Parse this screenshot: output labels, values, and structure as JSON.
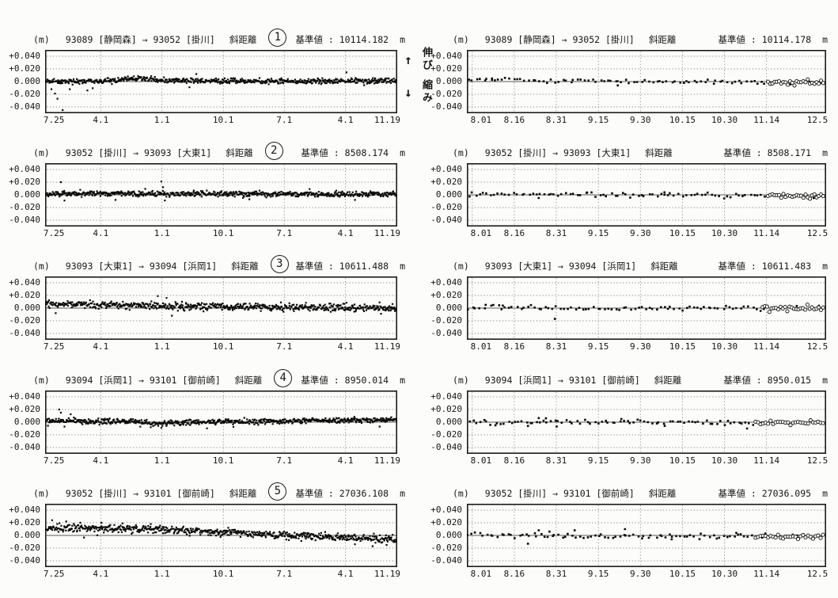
{
  "page": {
    "y_unit_label": "(m)",
    "reference_label": "基準値 :",
    "meter_unit": "m"
  },
  "annotation": {
    "up_arrow": "↑",
    "extend_label": "伸び",
    "down_arrow": "↓",
    "shrink_label": "縮み"
  },
  "axes": {
    "ylim": [
      -0.05,
      0.05
    ],
    "y_ticks": [
      {
        "label": "+0.040",
        "v": 0.04
      },
      {
        "label": "+0.020",
        "v": 0.02
      },
      {
        "label": "0.000",
        "v": 0.0
      },
      {
        "label": "-0.020",
        "v": -0.02
      },
      {
        "label": "-0.040",
        "v": -0.04
      }
    ],
    "x_left": {
      "ticks": [
        {
          "label": "7.25",
          "f": 0.0,
          "grid": false
        },
        {
          "label": "4.1",
          "f": 0.158,
          "grid": true
        },
        {
          "label": "1.1",
          "f": 0.332,
          "grid": true
        },
        {
          "label": "10.1",
          "f": 0.506,
          "grid": true
        },
        {
          "label": "7.1",
          "f": 0.679,
          "grid": true
        },
        {
          "label": "4.1",
          "f": 0.853,
          "grid": true
        },
        {
          "label": "11.19",
          "f": 1.0,
          "grid": false
        }
      ]
    },
    "x_right": {
      "ticks": [
        {
          "label": "8.01",
          "f": 0.015,
          "grid": true
        },
        {
          "label": "8.16",
          "f": 0.132,
          "grid": true
        },
        {
          "label": "8.31",
          "f": 0.249,
          "grid": true
        },
        {
          "label": "9.15",
          "f": 0.366,
          "grid": true
        },
        {
          "label": "9.30",
          "f": 0.483,
          "grid": true
        },
        {
          "label": "10.15",
          "f": 0.6,
          "grid": true
        },
        {
          "label": "10.30",
          "f": 0.717,
          "grid": true
        },
        {
          "label": "11.14",
          "f": 0.834,
          "grid": true
        },
        {
          "label": "12.5",
          "f": 0.998,
          "grid": false
        }
      ]
    }
  },
  "chart_data": [
    {
      "row": 1,
      "column": "left",
      "circled_number": "1",
      "type": "scatter",
      "title": "93089 [静岡森] → 93052 [掛川]",
      "measure": "斜距離",
      "reference_value": "10114.182",
      "x_axis": "x_left",
      "seed": 11,
      "n_points": 650,
      "noise_sd": 0.002,
      "stray_fraction": 0.012,
      "marker_px": 2.2,
      "trend": [
        [
          0,
          0.0005
        ],
        [
          0.18,
          0.001
        ],
        [
          0.26,
          0.0055
        ],
        [
          0.34,
          0.0015
        ],
        [
          0.6,
          0.0005
        ],
        [
          1,
          0.001
        ]
      ],
      "outliers": [
        [
          0.018,
          -0.012
        ],
        [
          0.028,
          -0.019
        ],
        [
          0.035,
          -0.027
        ],
        [
          0.05,
          -0.045
        ],
        [
          0.07,
          -0.012
        ],
        [
          0.12,
          -0.014
        ],
        [
          0.41,
          -0.009
        ]
      ],
      "open_tail": null
    },
    {
      "row": 1,
      "column": "right",
      "circled_number": null,
      "type": "scatter",
      "title": "93089 [静岡森] → 93052 [掛川]",
      "measure": "斜距離",
      "reference_value": "10114.178",
      "x_axis": "x_right",
      "seed": 61,
      "n_points": 80,
      "noise_sd": 0.0016,
      "stray_fraction": 0,
      "marker_px": 2.6,
      "trend": [
        [
          0,
          0.002
        ],
        [
          0.12,
          0.003
        ],
        [
          0.25,
          0.001
        ],
        [
          0.5,
          0.0
        ],
        [
          0.8,
          -0.001
        ],
        [
          1,
          -0.002
        ]
      ],
      "outliers": [
        [
          0.07,
          0.005
        ],
        [
          0.42,
          -0.006
        ]
      ],
      "open_tail": {
        "from": 0.835,
        "n": 26,
        "noise_sd": 0.002
      }
    },
    {
      "row": 2,
      "column": "left",
      "circled_number": "2",
      "type": "scatter",
      "title": "93052 [掛川] → 93093 [大東1]",
      "measure": "斜距離",
      "reference_value": "8508.174",
      "x_axis": "x_left",
      "seed": 22,
      "n_points": 650,
      "noise_sd": 0.002,
      "stray_fraction": 0.012,
      "marker_px": 2.2,
      "trend": [
        [
          0,
          0.002
        ],
        [
          0.5,
          0.0015
        ],
        [
          1,
          0.001
        ]
      ],
      "outliers": [
        [
          0.045,
          0.02
        ],
        [
          0.055,
          -0.009
        ],
        [
          0.2,
          -0.008
        ],
        [
          0.33,
          0.021
        ],
        [
          0.335,
          0.012
        ],
        [
          0.34,
          -0.009
        ],
        [
          0.58,
          -0.007
        ],
        [
          0.88,
          -0.008
        ]
      ],
      "open_tail": null
    },
    {
      "row": 2,
      "column": "right",
      "circled_number": null,
      "type": "scatter",
      "title": "93052 [掛川] → 93093 [大東1]",
      "measure": "斜距離",
      "reference_value": "8508.171",
      "x_axis": "x_right",
      "seed": 62,
      "n_points": 80,
      "noise_sd": 0.0018,
      "stray_fraction": 0,
      "marker_px": 2.6,
      "trend": [
        [
          0,
          0.001
        ],
        [
          0.5,
          0.0
        ],
        [
          1,
          -0.0015
        ]
      ],
      "outliers": [
        [
          0.2,
          -0.005
        ],
        [
          0.55,
          0.004
        ]
      ],
      "open_tail": {
        "from": 0.835,
        "n": 26,
        "noise_sd": 0.002
      }
    },
    {
      "row": 3,
      "column": "left",
      "circled_number": "3",
      "type": "scatter",
      "title": "93093 [大東1] → 93094 [浜岡1]",
      "measure": "斜距離",
      "reference_value": "10611.488",
      "x_axis": "x_left",
      "seed": 33,
      "n_points": 650,
      "noise_sd": 0.0028,
      "stray_fraction": 0.012,
      "marker_px": 2.2,
      "trend": [
        [
          0,
          0.006
        ],
        [
          0.2,
          0.005
        ],
        [
          0.35,
          0.003
        ],
        [
          0.55,
          0.002
        ],
        [
          0.8,
          0.001
        ],
        [
          1,
          0.0
        ]
      ],
      "outliers": [
        [
          0.03,
          -0.008
        ],
        [
          0.32,
          0.019
        ],
        [
          0.345,
          0.016
        ],
        [
          0.36,
          -0.012
        ],
        [
          0.95,
          0.009
        ]
      ],
      "open_tail": null
    },
    {
      "row": 3,
      "column": "right",
      "circled_number": null,
      "type": "scatter",
      "title": "93093 [大東1] → 93094 [浜岡1]",
      "measure": "斜距離",
      "reference_value": "10611.483",
      "x_axis": "x_right",
      "seed": 63,
      "n_points": 80,
      "noise_sd": 0.0018,
      "stray_fraction": 0,
      "marker_px": 2.6,
      "trend": [
        [
          0,
          0.0015
        ],
        [
          0.3,
          0.0
        ],
        [
          0.7,
          0.0
        ],
        [
          1,
          -0.001
        ]
      ],
      "outliers": [
        [
          0.1,
          0.004
        ],
        [
          0.245,
          -0.017
        ]
      ],
      "open_tail": {
        "from": 0.82,
        "n": 28,
        "noise_sd": 0.0022
      }
    },
    {
      "row": 4,
      "column": "left",
      "circled_number": "4",
      "type": "scatter",
      "title": "93094 [浜岡1] → 93101 [御前崎]",
      "measure": "斜距離",
      "reference_value": "8950.014",
      "x_axis": "x_left",
      "seed": 44,
      "n_points": 650,
      "noise_sd": 0.002,
      "stray_fraction": 0.012,
      "marker_px": 2.2,
      "trend": [
        [
          0,
          0.002
        ],
        [
          0.25,
          0.001
        ],
        [
          0.32,
          -0.002
        ],
        [
          0.42,
          0.0
        ],
        [
          0.7,
          0.002
        ],
        [
          1,
          0.0035
        ]
      ],
      "outliers": [
        [
          0.04,
          0.02
        ],
        [
          0.045,
          0.015
        ],
        [
          0.055,
          -0.007
        ],
        [
          0.3,
          -0.008
        ],
        [
          0.33,
          -0.009
        ],
        [
          0.95,
          -0.007
        ]
      ],
      "open_tail": null
    },
    {
      "row": 4,
      "column": "right",
      "circled_number": null,
      "type": "scatter",
      "title": "93094 [浜岡1] → 93101 [御前崎]",
      "measure": "斜距離",
      "reference_value": "8950.015",
      "x_axis": "x_right",
      "seed": 64,
      "n_points": 80,
      "noise_sd": 0.002,
      "stray_fraction": 0,
      "marker_px": 2.6,
      "trend": [
        [
          0,
          0.0
        ],
        [
          0.5,
          -0.0005
        ],
        [
          1,
          -0.001
        ]
      ],
      "outliers": [
        [
          0.17,
          -0.006
        ],
        [
          0.2,
          0.0065
        ],
        [
          0.22,
          0.006
        ],
        [
          0.25,
          -0.007
        ],
        [
          0.43,
          0.005
        ],
        [
          0.78,
          -0.01
        ]
      ],
      "open_tail": {
        "from": 0.8,
        "n": 28,
        "noise_sd": 0.002
      }
    },
    {
      "row": 5,
      "column": "left",
      "circled_number": "5",
      "type": "scatter",
      "title": "93052 [掛川] → 93101 [御前崎]",
      "measure": "斜距離",
      "reference_value": "27036.108",
      "x_axis": "x_left",
      "seed": 55,
      "n_points": 650,
      "noise_sd": 0.0028,
      "stray_fraction": 0.015,
      "marker_px": 2.2,
      "trend": [
        [
          0,
          0.012
        ],
        [
          0.15,
          0.011
        ],
        [
          0.3,
          0.01
        ],
        [
          0.45,
          0.006
        ],
        [
          0.6,
          0.002
        ],
        [
          0.75,
          -0.001
        ],
        [
          0.9,
          -0.005
        ],
        [
          1,
          -0.007
        ]
      ],
      "outliers": [
        [
          0.02,
          0.024
        ],
        [
          0.06,
          0.022
        ],
        [
          0.1,
          0.02
        ],
        [
          0.16,
          0.02
        ],
        [
          0.22,
          0.019
        ],
        [
          0.3,
          0.018
        ],
        [
          0.52,
          0.012
        ],
        [
          0.88,
          -0.014
        ],
        [
          0.93,
          -0.017
        ],
        [
          0.97,
          -0.015
        ]
      ],
      "open_tail": null
    },
    {
      "row": 5,
      "column": "right",
      "circled_number": null,
      "type": "scatter",
      "title": "93052 [掛川] → 93101 [御前崎]",
      "measure": "斜距離",
      "reference_value": "27036.095",
      "x_axis": "x_right",
      "seed": 65,
      "n_points": 80,
      "noise_sd": 0.0022,
      "stray_fraction": 0,
      "marker_px": 2.6,
      "trend": [
        [
          0,
          0.0005
        ],
        [
          0.5,
          -0.001
        ],
        [
          1,
          -0.0015
        ]
      ],
      "outliers": [
        [
          0.17,
          -0.013
        ],
        [
          0.2,
          0.008
        ],
        [
          0.23,
          0.006
        ],
        [
          0.3,
          0.008
        ],
        [
          0.44,
          0.01
        ],
        [
          0.57,
          -0.006
        ],
        [
          0.75,
          0.004
        ]
      ],
      "open_tail": {
        "from": 0.8,
        "n": 28,
        "noise_sd": 0.0022
      }
    }
  ]
}
